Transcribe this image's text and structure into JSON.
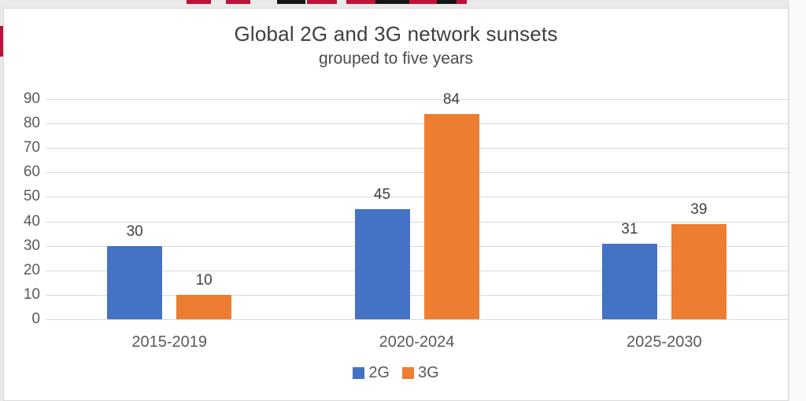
{
  "chart_data": {
    "type": "bar",
    "title": "Global 2G and 3G network sunsets",
    "subtitle": "grouped to five years",
    "categories": [
      "2015-2019",
      "2020-2024",
      "2025-2030"
    ],
    "series": [
      {
        "name": "2G",
        "values": [
          30,
          45,
          31
        ],
        "color": "#4472c4"
      },
      {
        "name": "3G",
        "values": [
          10,
          84,
          39
        ],
        "color": "#ed7d31"
      }
    ],
    "ylabel": "",
    "xlabel": "",
    "ylim": [
      0,
      90
    ],
    "ytick_step": 10,
    "grid": true,
    "data_labels": true,
    "legend_position": "bottom"
  },
  "colors": {
    "series_2g": "#4472c4",
    "series_3g": "#ed7d31",
    "gridline": "#d9d9d9",
    "panel_background": "#ffffff",
    "panel_border": "#d9d9d9",
    "page_background": "#e9e9e9",
    "title_text": "#3f3f3f",
    "axis_text": "#595959",
    "artifact_red": "#bf1138",
    "artifact_black": "#141414"
  }
}
